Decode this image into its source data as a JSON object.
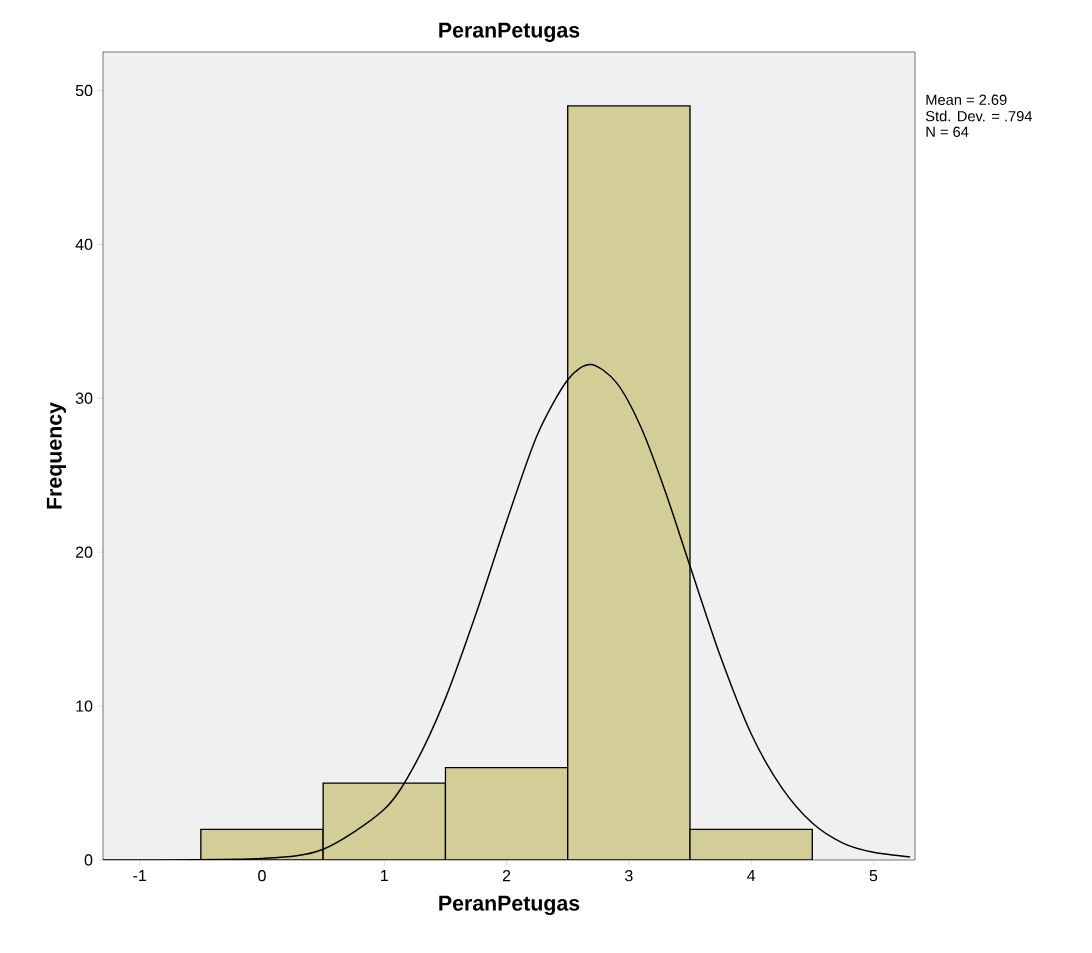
{
  "chart_data": {
    "type": "histogram",
    "title": "PeranPetugas",
    "xlabel": "PeranPetugas",
    "ylabel": "Frequency",
    "bins": [
      -0.5,
      0.5,
      1.5,
      2.5,
      3.5,
      4.5
    ],
    "values": [
      2,
      5,
      6,
      49,
      2
    ],
    "color": "#d3ce97",
    "series": [
      {
        "type": "line",
        "color": "#000000",
        "x": [
          -1.3,
          -1,
          0,
          0.5,
          1,
          1.25,
          1.5,
          1.75,
          2,
          2.25,
          2.5,
          2.69,
          2.9,
          3.1,
          3.3,
          3.5,
          3.75,
          4,
          4.25,
          4.5,
          4.75,
          5,
          5.3
        ],
        "values": [
          0,
          0,
          0.1,
          0.7,
          3.3,
          6.2,
          10.5,
          16,
          22,
          27.6,
          31.2,
          32.2,
          31,
          28.1,
          23.9,
          19.1,
          13.2,
          8.2,
          4.7,
          2.4,
          1.1,
          0.5,
          0.2
        ]
      }
    ],
    "xlim": [
      -1.3,
      5.34
    ],
    "ylim": [
      0,
      52.5
    ],
    "xticks": [
      -1,
      0,
      1,
      2,
      3,
      4,
      5
    ],
    "yticks": [
      0,
      10,
      20,
      30,
      40,
      50
    ],
    "annotations": [
      "Mean = 2.69",
      "Std. Dev. = .794",
      "N = 64"
    ]
  }
}
